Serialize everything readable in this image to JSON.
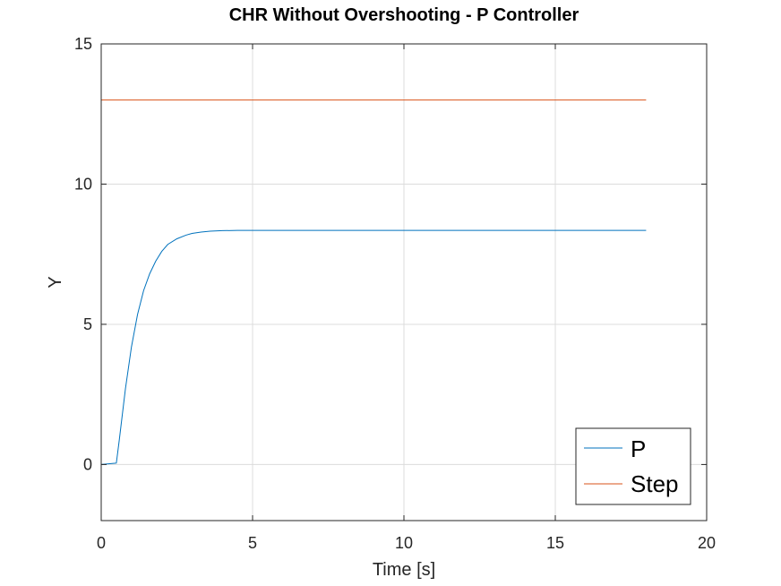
{
  "chart_data": {
    "type": "line",
    "title": "CHR Without Overshooting - P Controller",
    "xlabel": "Time [s]",
    "ylabel": "Y",
    "xlim": [
      0,
      20
    ],
    "ylim": [
      -2,
      15
    ],
    "xticks": [
      0,
      5,
      10,
      15,
      20
    ],
    "yticks": [
      0,
      5,
      10,
      15
    ],
    "grid": true,
    "legend_position": "bottom-right",
    "series": [
      {
        "name": "P",
        "color": "#0072BD",
        "x": [
          0,
          0.5,
          0.6,
          0.8,
          1.0,
          1.2,
          1.4,
          1.6,
          1.8,
          2.0,
          2.2,
          2.5,
          2.8,
          3.0,
          3.3,
          3.6,
          4.0,
          4.5,
          5.0,
          6.0,
          8.0,
          10.0,
          12.0,
          14.0,
          16.0,
          18.0
        ],
        "y": [
          0,
          0.05,
          0.9,
          2.7,
          4.2,
          5.35,
          6.2,
          6.8,
          7.25,
          7.6,
          7.85,
          8.05,
          8.18,
          8.24,
          8.29,
          8.32,
          8.34,
          8.35,
          8.35,
          8.35,
          8.35,
          8.35,
          8.35,
          8.35,
          8.35,
          8.35
        ]
      },
      {
        "name": "Step",
        "color": "#D95319",
        "x": [
          0,
          18
        ],
        "y": [
          13,
          13
        ]
      }
    ]
  }
}
